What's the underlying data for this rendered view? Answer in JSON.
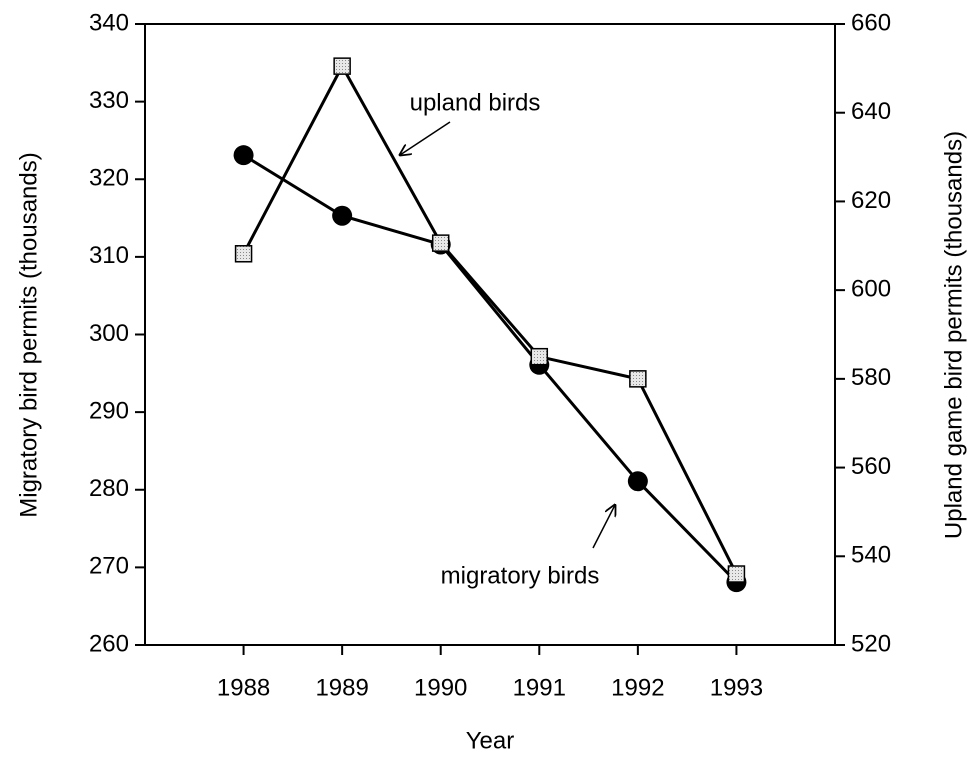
{
  "chart_data": {
    "type": "line",
    "x_label": "Year",
    "y_label": "Migratory bird permits (thousands)",
    "y2_label": "Upland game bird permits (thousands)",
    "annotations": [
      "upland birds",
      "migratory birds"
    ],
    "x": [
      1988,
      1989,
      1990,
      1991,
      1992,
      1993
    ],
    "xlim": [
      1987,
      1994
    ],
    "xticks": [
      1988,
      1989,
      1990,
      1991,
      1992,
      1993
    ],
    "ylim": [
      260,
      340
    ],
    "yticks": [
      260,
      270,
      280,
      290,
      300,
      310,
      320,
      330,
      340
    ],
    "y2lim": [
      520,
      660
    ],
    "y2ticks": [
      520,
      540,
      560,
      580,
      600,
      620,
      640,
      660
    ],
    "series": [
      {
        "name": "migratory birds",
        "color": "#000000",
        "marker": "circle",
        "values": [
          323.1,
          315.3,
          311.6,
          296.1,
          281.1,
          268.1
        ]
      },
      {
        "name": "upland birds",
        "color": "#000000",
        "marker": "square",
        "axis": "y2",
        "values": [
          608.2,
          650.5,
          610.6,
          585,
          580,
          536
        ]
      }
    ]
  }
}
